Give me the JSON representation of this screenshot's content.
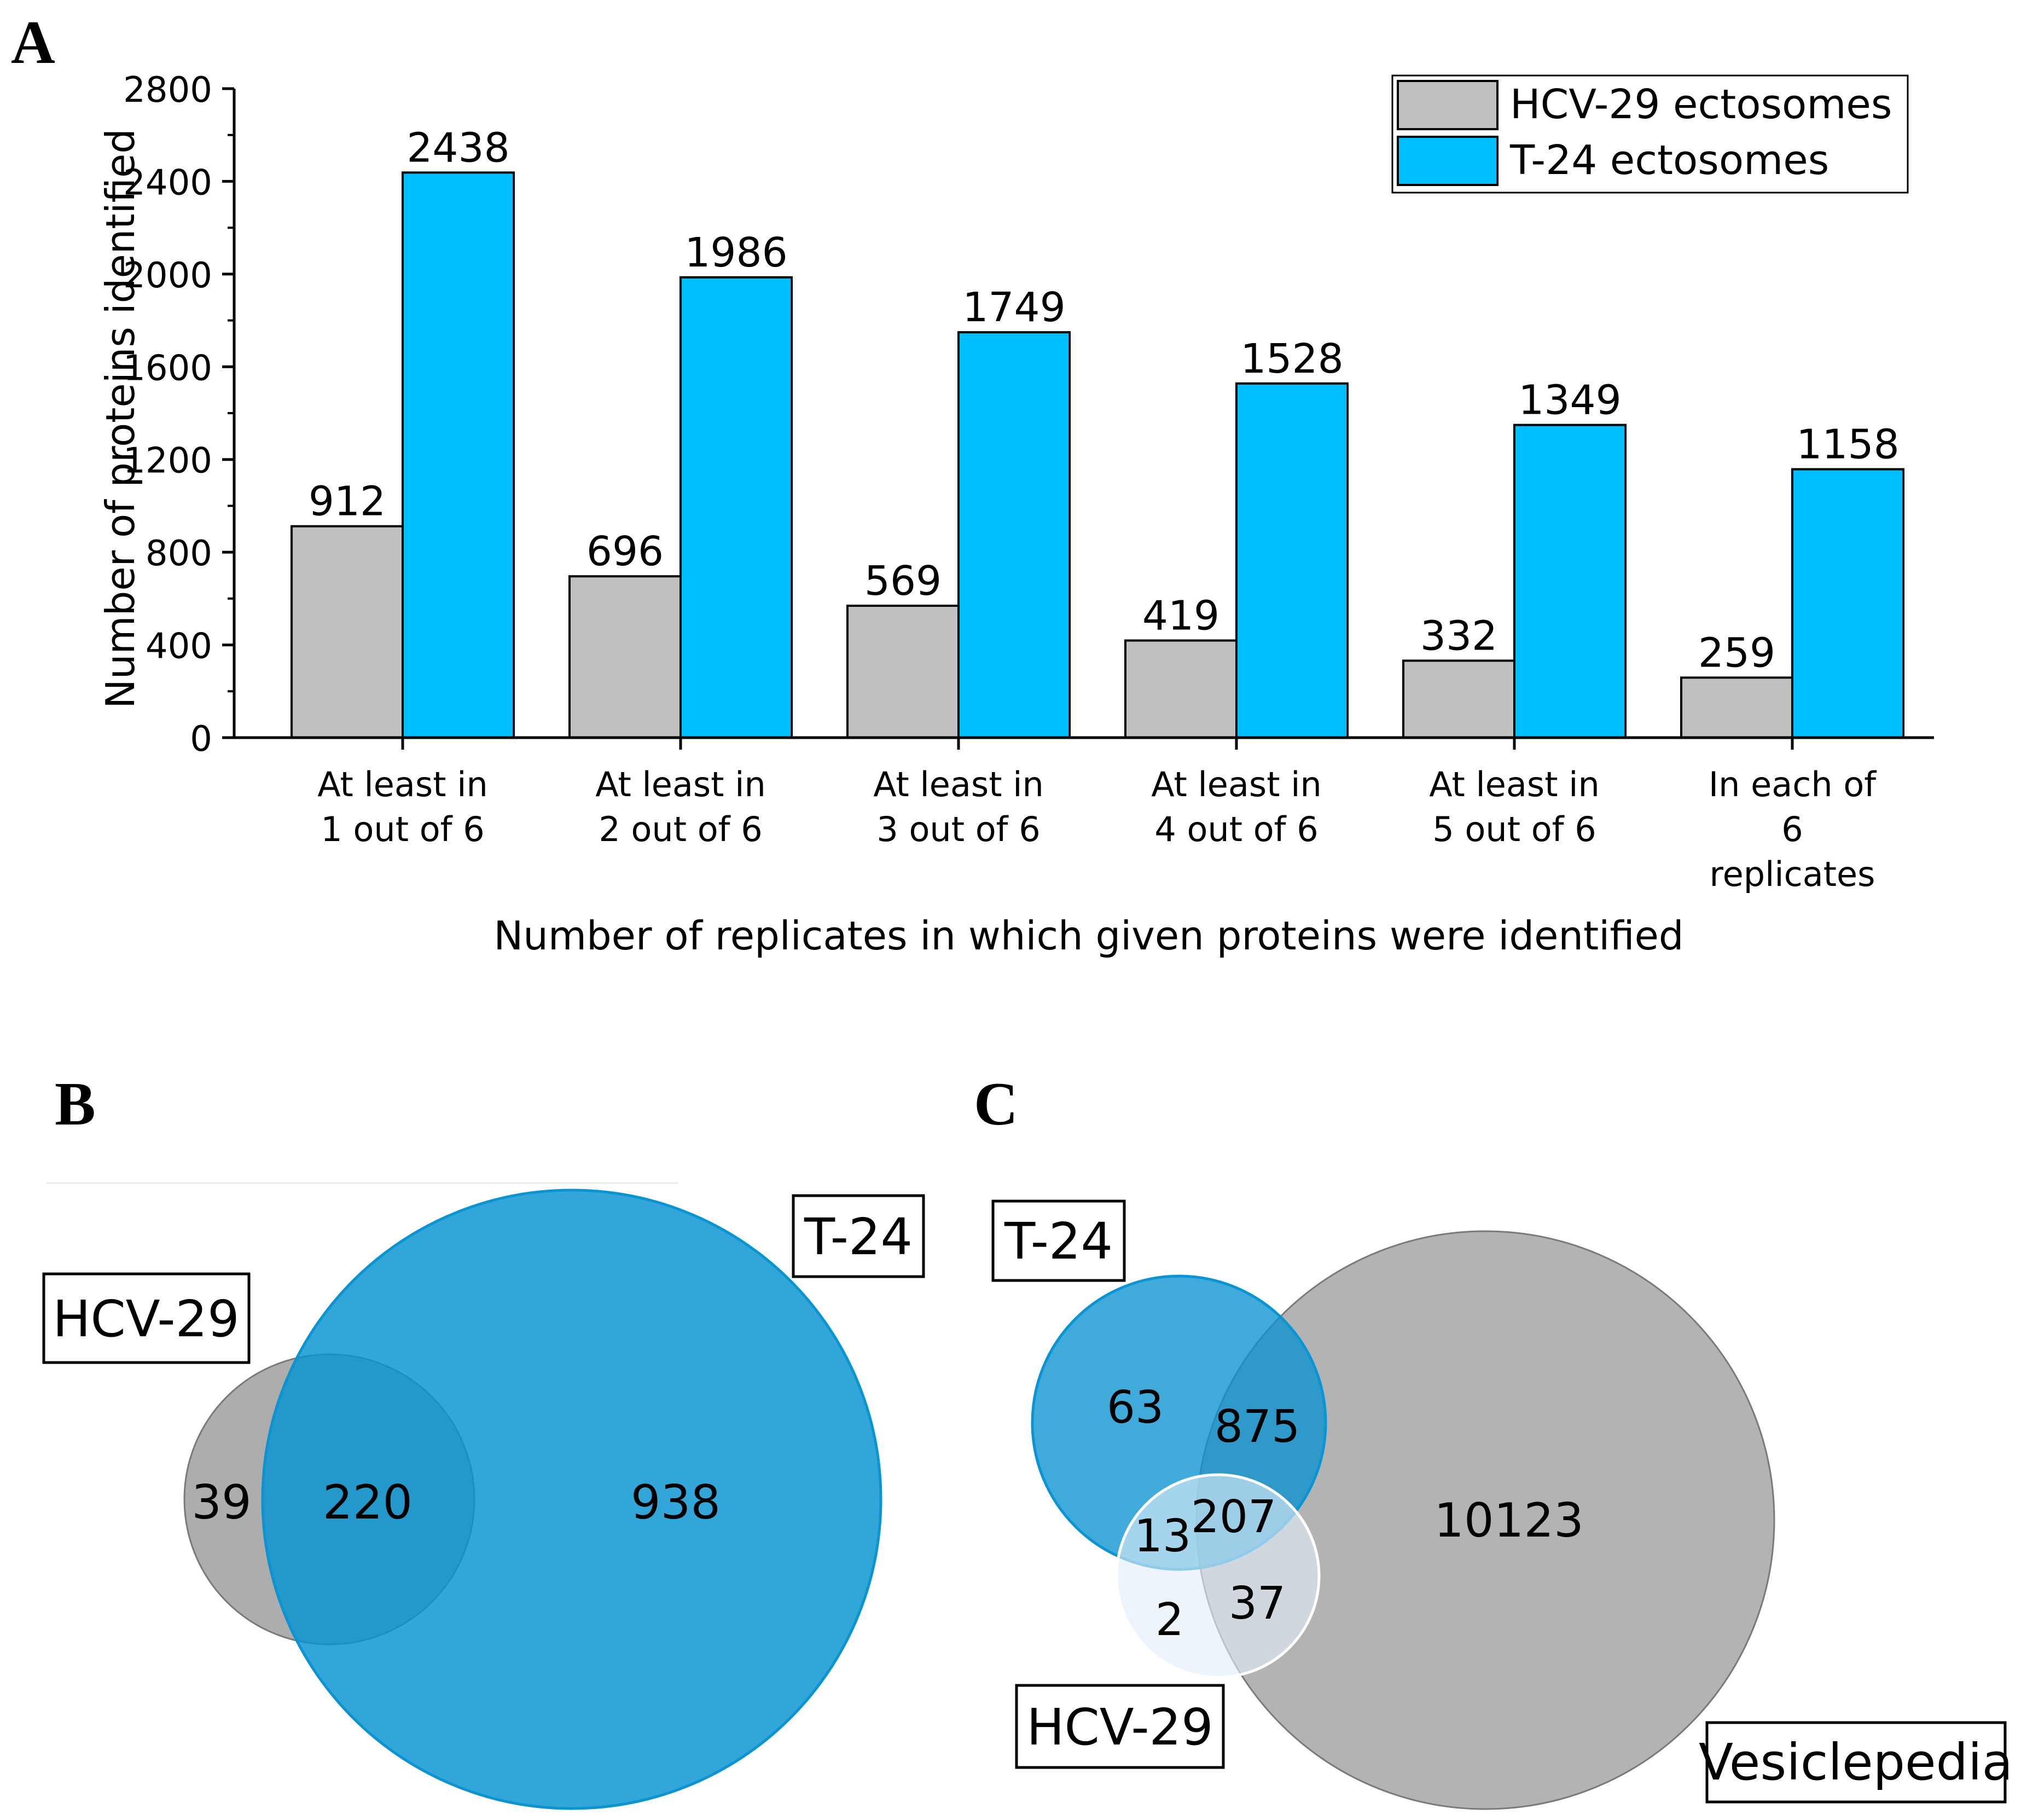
{
  "colors": {
    "hcv": "#c0c0c0",
    "t24": "#00bfff",
    "venn_blue": "#0a94d1",
    "venn_grey": "#8a8a8a",
    "venn_light": "#e4eef8"
  },
  "panels": {
    "a_label": "A",
    "b_label": "B",
    "c_label": "C"
  },
  "chart_data": [
    {
      "type": "bar",
      "panel": "A",
      "categories": [
        [
          "At least in",
          "1 out of 6"
        ],
        [
          "At least in",
          "2 out of 6"
        ],
        [
          "At least in",
          "3 out of 6"
        ],
        [
          "At least in",
          "4 out of 6"
        ],
        [
          "At least in",
          "5 out of 6"
        ],
        [
          "In each of",
          "6",
          "replicates"
        ]
      ],
      "series": [
        {
          "name": "HCV-29 ectosomes",
          "color": "#c0c0c0",
          "values": [
            912,
            696,
            569,
            419,
            332,
            259
          ]
        },
        {
          "name": "T-24 ectosomes",
          "color": "#00bfff",
          "values": [
            2438,
            1986,
            1749,
            1528,
            1349,
            1158
          ]
        }
      ],
      "xlabel": "Number of replicates in which given proteins were identified",
      "ylabel": "Number of proteins identified",
      "ylim": [
        0,
        2800
      ],
      "yticks": [
        0,
        400,
        800,
        1200,
        1600,
        2000,
        2400,
        2800
      ],
      "legend_position": "top-right"
    },
    {
      "type": "venn",
      "panel": "B",
      "sets": [
        {
          "name": "HCV-29",
          "only": 39
        },
        {
          "name": "T-24",
          "only": 938
        }
      ],
      "intersection": 220
    },
    {
      "type": "venn",
      "panel": "C",
      "sets": [
        {
          "name": "T-24",
          "only": 63
        },
        {
          "name": "Vesiclepedia",
          "only": 10123
        },
        {
          "name": "HCV-29",
          "only": 2
        }
      ],
      "intersections": {
        "T-24 & Vesiclepedia": 875,
        "T-24 & HCV-29": 13,
        "all three": 207,
        "HCV-29 & Vesiclepedia": 37
      }
    }
  ]
}
